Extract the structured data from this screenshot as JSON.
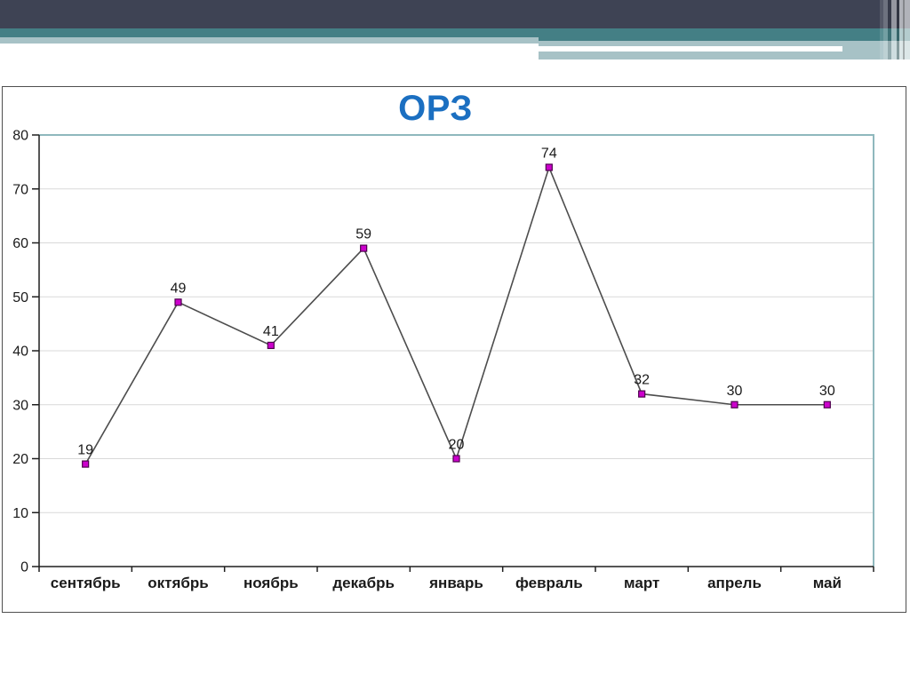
{
  "slide": {
    "title": "ОРЗ"
  },
  "theme": {
    "title_color": "#1b6fc1",
    "header_dark": "#3e4354",
    "header_teal": "#447f85",
    "header_light": "#a7c2c6",
    "panel_border": "#4f4f4f"
  },
  "chart_data": {
    "type": "line",
    "title": "ОРЗ",
    "categories": [
      "сентябрь",
      "октябрь",
      "ноябрь",
      "декабрь",
      "январь",
      "февраль",
      "март",
      "апрель",
      "май"
    ],
    "values": [
      19,
      49,
      41,
      59,
      20,
      74,
      32,
      30,
      30
    ],
    "data_labels": [
      19,
      49,
      41,
      59,
      20,
      74,
      32,
      30,
      30
    ],
    "xlabel": "",
    "ylabel": "",
    "ylim": [
      0,
      80
    ],
    "ytick_step": 10,
    "yticks": [
      0,
      10,
      20,
      30,
      40,
      50,
      60,
      70,
      80
    ],
    "grid": "horizontal",
    "legend": "none",
    "colors": {
      "line": "#4d4d4d",
      "marker_fill": "#cc00cc",
      "marker_border": "#4d004d",
      "plot_border": "#8fb8bd",
      "gridline": "#d9d9d9",
      "axis": "#1f1f1f",
      "label": "#1a1a1a"
    }
  }
}
